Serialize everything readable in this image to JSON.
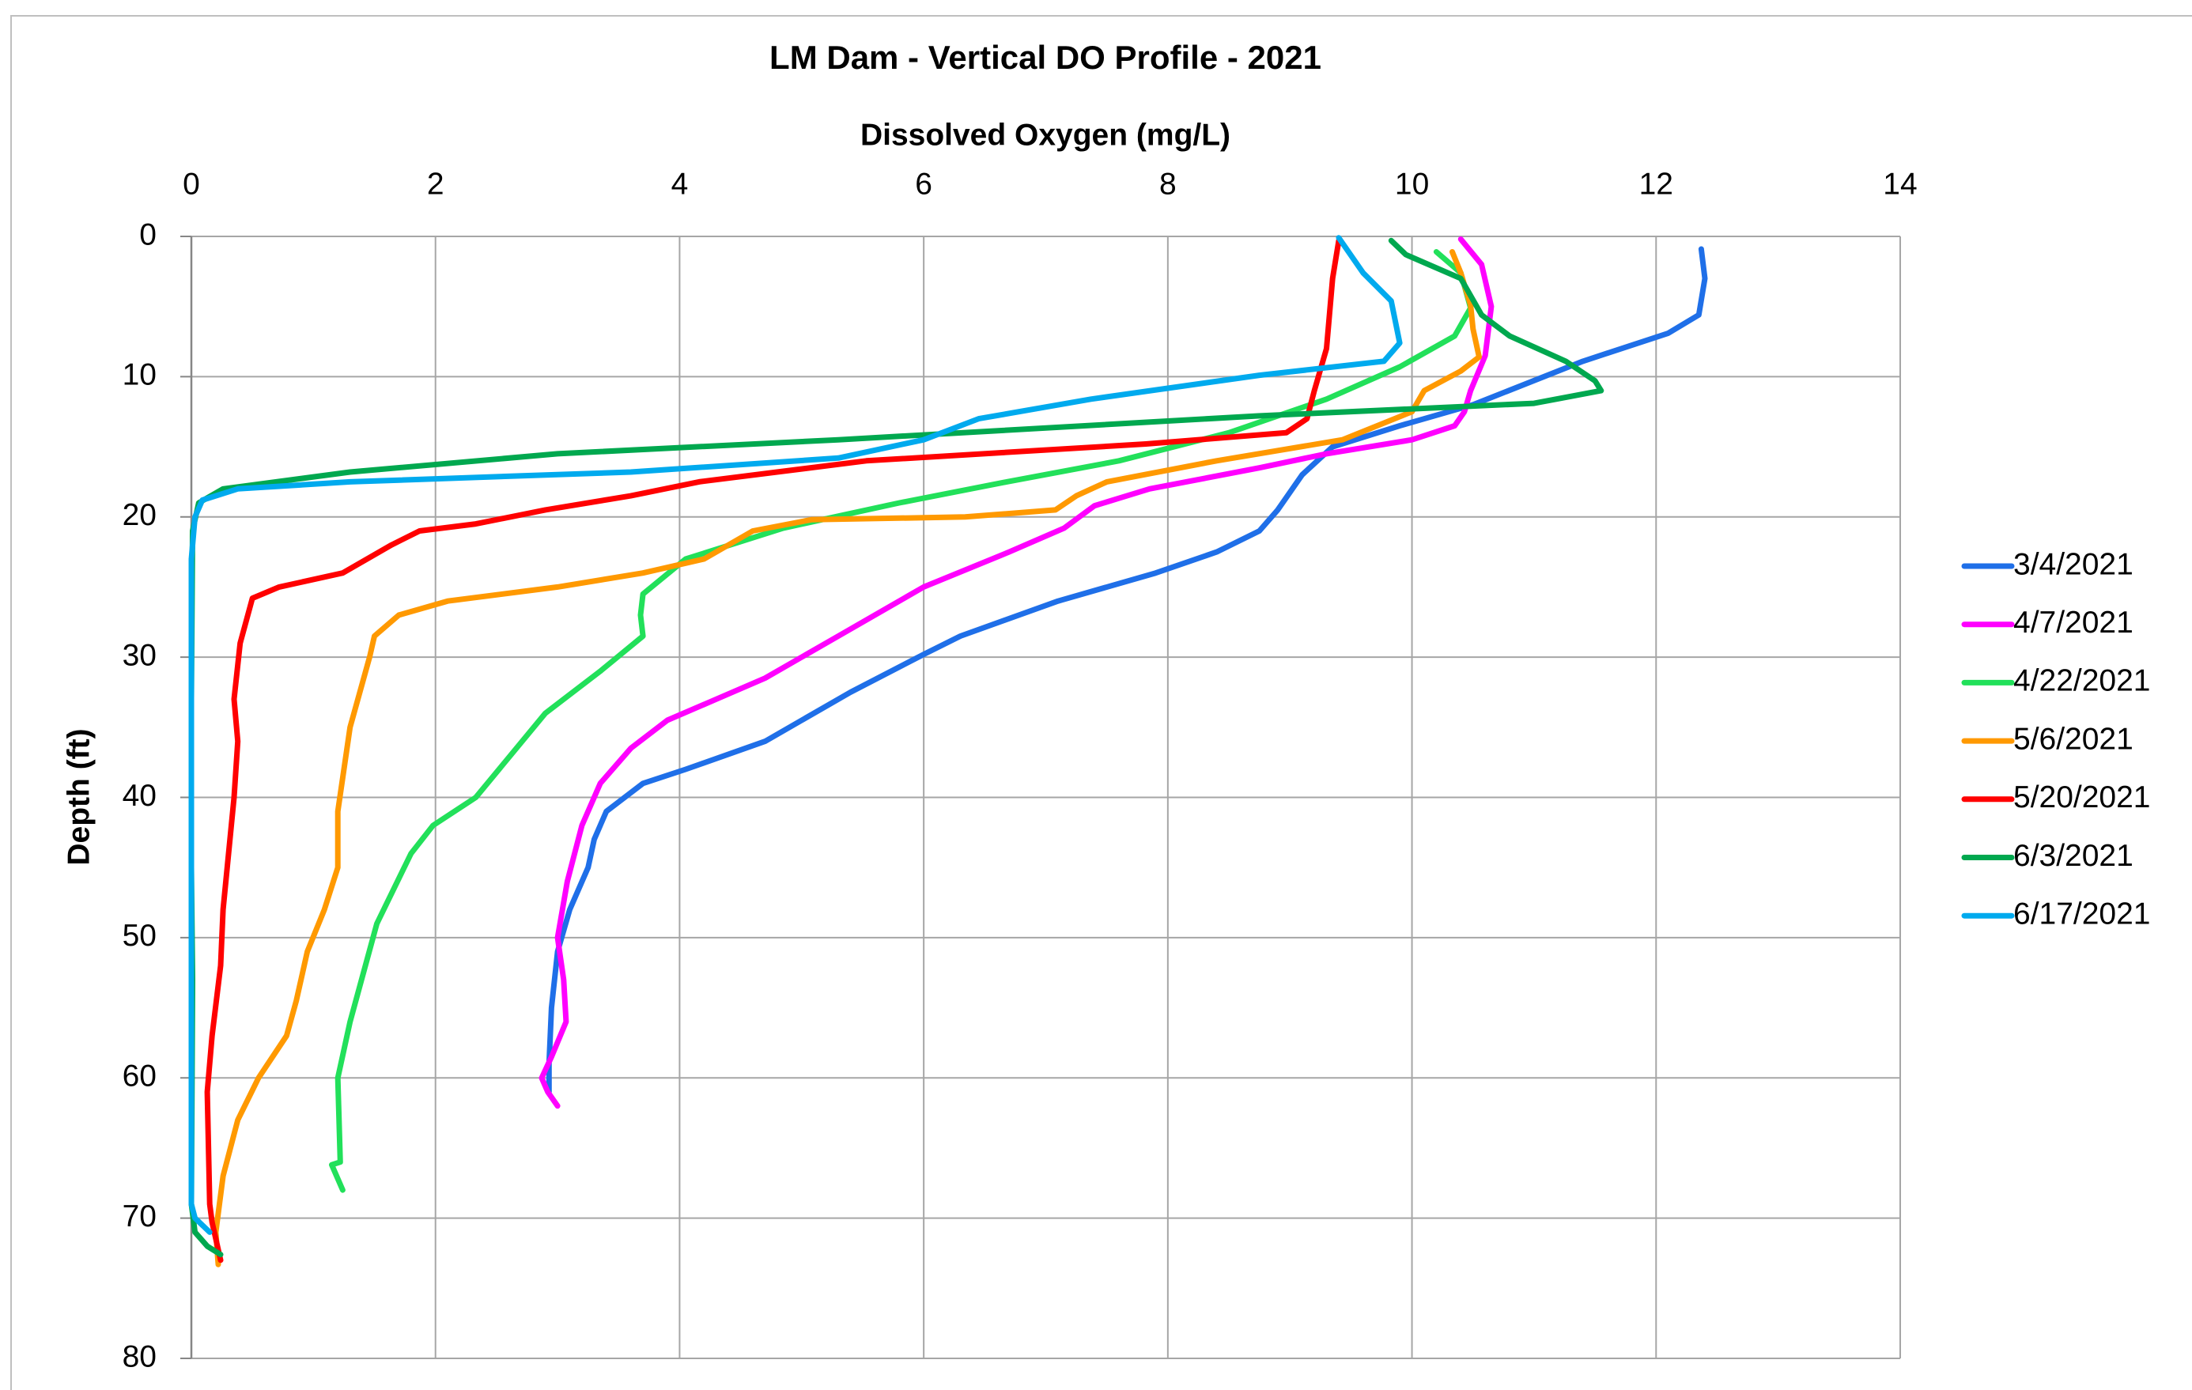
{
  "chart_data": {
    "type": "line",
    "title": "LM Dam - Vertical DO Profile - 2021",
    "x_label": "Dissolved Oxygen (mg/L)",
    "y_label": "Depth (ft)",
    "x_axis_position": "top",
    "y_inverted": true,
    "xlim": [
      0,
      14
    ],
    "xticks": [
      0,
      2,
      4,
      6,
      8,
      10,
      12,
      14
    ],
    "ylim": [
      0,
      80
    ],
    "yticks": [
      0,
      10,
      20,
      30,
      40,
      50,
      60,
      70,
      80
    ],
    "grid": true,
    "legend": "right",
    "series": [
      {
        "name": "3/4/2021",
        "color": "#1f6fe8",
        "x": [
          12.37,
          12.4,
          12.35,
          12.1,
          11.4,
          10.5,
          9.9,
          9.35,
          9.1,
          8.9,
          8.75,
          8.4,
          7.9,
          7.1,
          6.3,
          6.0,
          5.4,
          4.7,
          4.05,
          3.7,
          3.4,
          3.3,
          3.25,
          3.1,
          3.0,
          2.95,
          2.93,
          2.93
        ],
        "values": [
          0.9,
          3,
          5.6,
          6.9,
          8.9,
          12,
          13.5,
          15,
          17,
          19.5,
          21,
          22.5,
          24,
          26,
          28.5,
          29.8,
          32.5,
          36,
          38,
          39,
          41,
          43,
          45,
          48,
          51,
          55,
          59,
          61
        ]
      },
      {
        "name": "4/7/2021",
        "color": "#ff00ff",
        "x": [
          10.4,
          10.57,
          10.65,
          10.6,
          10.48,
          10.43,
          10.35,
          10.0,
          9.3,
          8.75,
          7.85,
          7.4,
          7.15,
          6.7,
          6.0,
          5.3,
          4.7,
          3.9,
          3.6,
          3.35,
          3.2,
          3.08,
          3.0,
          3.05,
          3.07,
          2.95,
          2.87,
          2.92,
          3.0
        ],
        "values": [
          0.2,
          2,
          5,
          8.5,
          11,
          12.5,
          13.5,
          14.5,
          15.5,
          16.5,
          18,
          19.2,
          20.8,
          22.5,
          25,
          28.5,
          31.5,
          34.5,
          36.5,
          39,
          42,
          46,
          50,
          53,
          56,
          58.5,
          60,
          61,
          62
        ]
      },
      {
        "name": "4/22/2021",
        "color": "#22e05a",
        "x": [
          10.2,
          10.4,
          10.48,
          10.35,
          9.9,
          9.3,
          8.5,
          7.6,
          6.68,
          5.8,
          4.85,
          4.05,
          3.7,
          3.68,
          3.7,
          3.35,
          2.9,
          2.33,
          1.98,
          1.8,
          1.52,
          1.3,
          1.2,
          1.22,
          1.15,
          1.24
        ],
        "values": [
          1.1,
          2.6,
          5.1,
          7.1,
          9.3,
          11.6,
          14,
          16,
          17.5,
          19,
          20.8,
          23,
          25.5,
          27,
          28.5,
          31,
          34,
          40,
          42,
          44,
          49,
          56,
          60,
          66,
          66.2,
          68
        ]
      },
      {
        "name": "5/6/2021",
        "color": "#ff9900",
        "x": [
          10.33,
          10.4,
          10.48,
          10.5,
          10.55,
          10.4,
          10.1,
          10.0,
          9.43,
          8.4,
          7.5,
          7.25,
          7.08,
          6.34,
          5.08,
          4.6,
          4.2,
          3.7,
          3.0,
          2.1,
          1.7,
          1.5,
          1.46,
          1.3,
          1.2,
          1.2,
          1.09,
          0.95,
          0.86,
          0.78,
          0.55,
          0.38,
          0.26,
          0.2,
          0.22
        ],
        "values": [
          1.1,
          2.6,
          4.9,
          6.6,
          8.6,
          9.6,
          11,
          12.5,
          14.5,
          16,
          17.5,
          18.5,
          19.5,
          20,
          20.2,
          21,
          23,
          24,
          25,
          26,
          27,
          28.5,
          30,
          35,
          41,
          45,
          48,
          51,
          54.5,
          57,
          60,
          63,
          67,
          71,
          73.3
        ]
      },
      {
        "name": "5/20/2021",
        "color": "#ff0000",
        "x": [
          9.4,
          9.35,
          9.3,
          9.2,
          9.14,
          8.97,
          7.82,
          5.53,
          4.16,
          3.6,
          2.9,
          2.33,
          1.87,
          1.64,
          1.24,
          0.72,
          0.5,
          0.4,
          0.35,
          0.38,
          0.35,
          0.26,
          0.24,
          0.17,
          0.13,
          0.15,
          0.17,
          0.24
        ],
        "values": [
          0.3,
          3,
          8,
          11,
          13,
          14,
          14.8,
          16,
          17.5,
          18.5,
          19.5,
          20.5,
          21,
          22,
          24,
          25,
          25.8,
          29,
          33,
          36,
          40,
          48,
          52,
          57,
          61,
          69,
          70.3,
          73
        ]
      },
      {
        "name": "6/3/2021",
        "color": "#00a84f",
        "x": [
          9.83,
          9.95,
          10.4,
          10.57,
          10.8,
          11.26,
          11.5,
          11.55,
          11.0,
          8.74,
          5.3,
          3.0,
          1.3,
          0.26,
          0.06,
          0.01,
          0,
          0,
          0.01,
          0,
          0.03,
          0.13,
          0.24
        ],
        "values": [
          0.3,
          1.3,
          3,
          5.6,
          7.1,
          8.9,
          10.3,
          11,
          11.9,
          12.8,
          14.5,
          15.5,
          16.8,
          18,
          19,
          21,
          33,
          45,
          53,
          69,
          71,
          72,
          72.6
        ]
      },
      {
        "name": "6/17/2021",
        "color": "#00aaee",
        "x": [
          9.4,
          9.6,
          9.83,
          9.9,
          9.77,
          8.75,
          7.37,
          6.45,
          6.0,
          5.3,
          3.6,
          1.3,
          0.38,
          0.09,
          0.03,
          0,
          0,
          0.03,
          0.15
        ],
        "values": [
          0.1,
          2.6,
          4.6,
          7.6,
          8.9,
          9.9,
          11.6,
          13,
          14.5,
          15.8,
          16.8,
          17.5,
          18,
          18.8,
          20,
          23,
          69,
          70,
          71
        ]
      }
    ]
  }
}
